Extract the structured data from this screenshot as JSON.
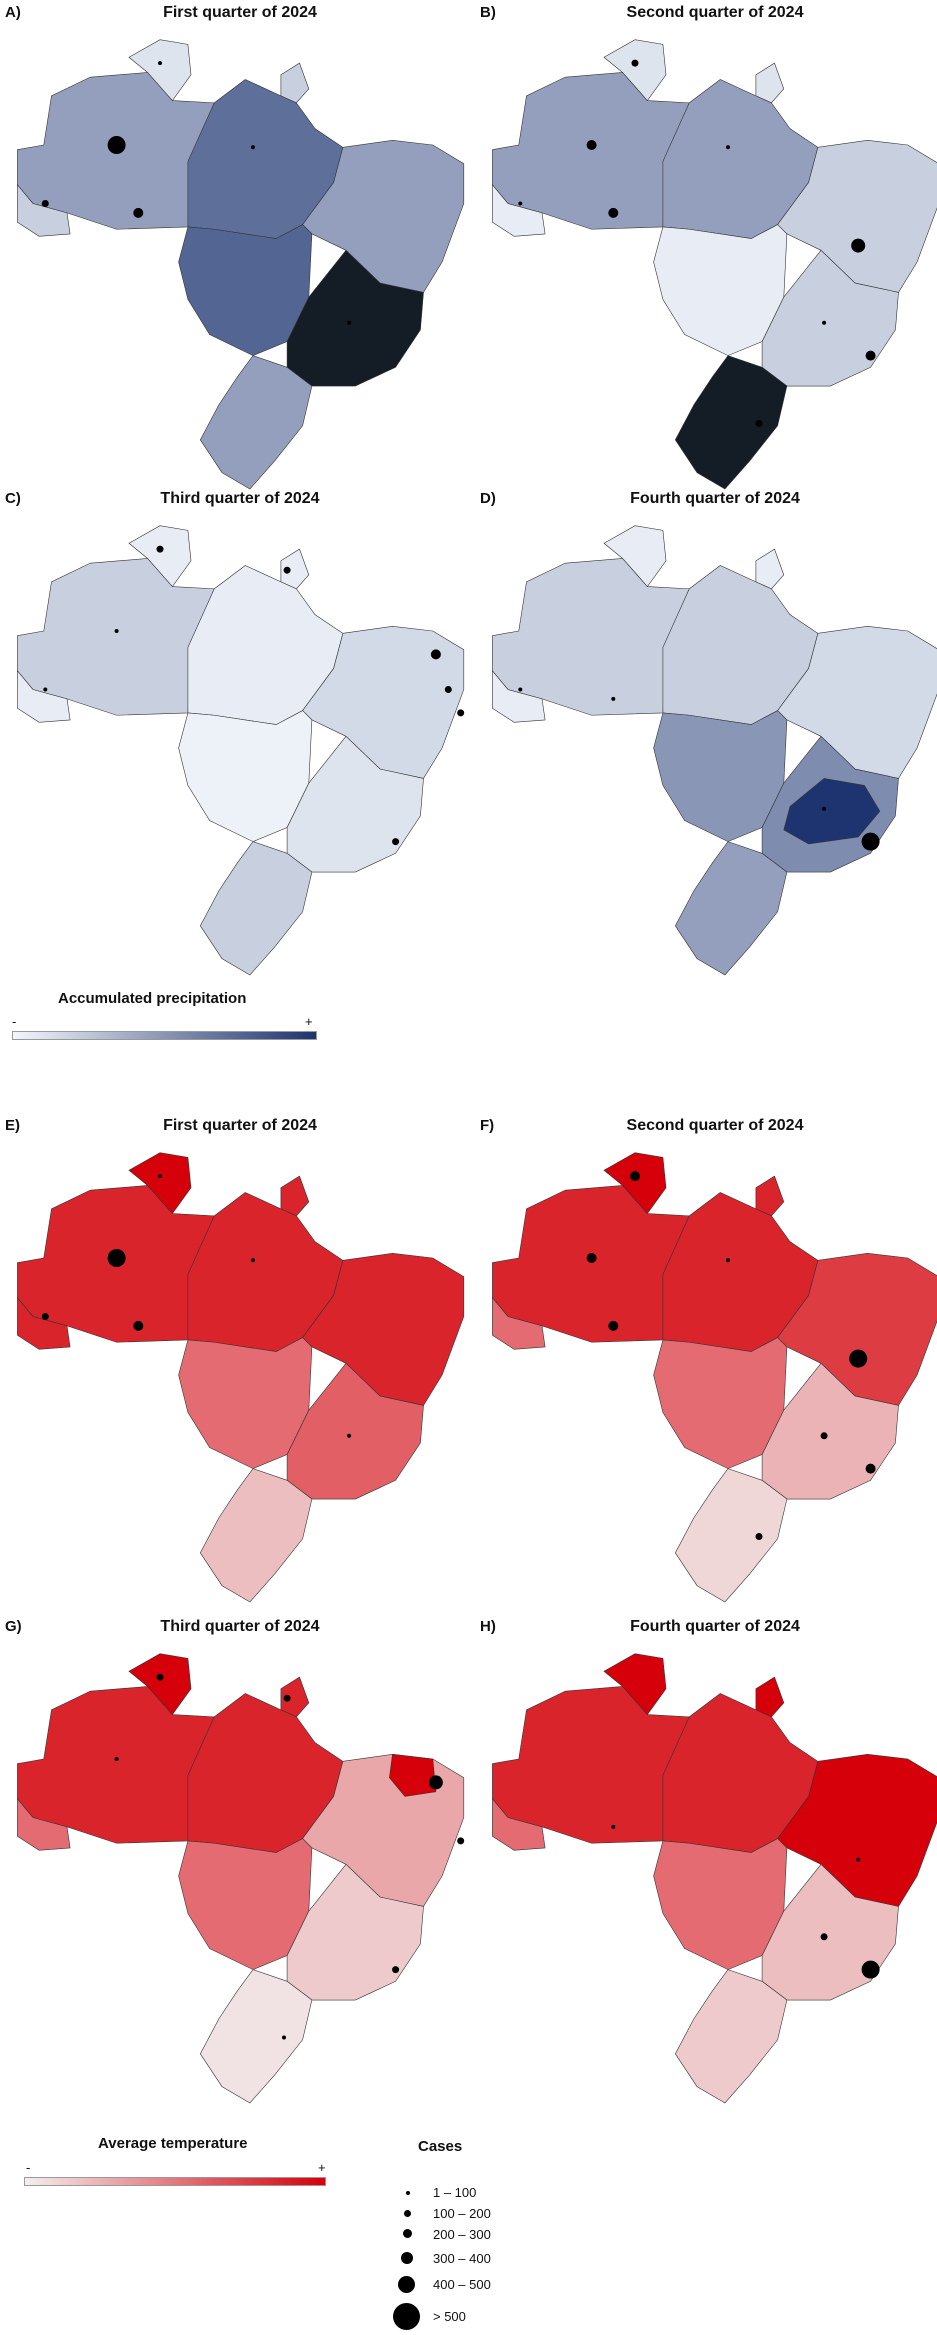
{
  "colors": {
    "precip_low": "#f3f7fc",
    "precip_high": "#1e3470",
    "temp_low": "#f2eeee",
    "temp_high": "#d6000a",
    "border": "#333333",
    "dot": "#000000"
  },
  "panels": [
    {
      "letter": "A)",
      "title": "First quarter of 2024",
      "variable": "precipitation",
      "levels": {
        "northwest": 0.45,
        "north": 0.7,
        "northeast": 0.45,
        "centerwest": 0.75,
        "southeast": 1.0,
        "south": 0.45,
        "roraima": 0.1,
        "amapa": 0.2,
        "acre": 0.2
      },
      "dots": [
        {
          "site": "amazonas",
          "cases": "400 - 500"
        },
        {
          "site": "acre",
          "cases": "100 - 200"
        },
        {
          "site": "rondonia",
          "cases": "200 - 300"
        },
        {
          "site": "roraima",
          "cases": "1 - 100"
        },
        {
          "site": "para",
          "cases": "1 - 100"
        },
        {
          "site": "minas",
          "cases": "1 - 100"
        }
      ]
    },
    {
      "letter": "B)",
      "title": "Second quarter of 2024",
      "variable": "precipitation",
      "levels": {
        "northwest": 0.45,
        "north": 0.45,
        "northeast": 0.2,
        "centerwest": 0.05,
        "southeast": 0.2,
        "south": 1.0,
        "roraima": 0.1,
        "amapa": 0.1,
        "acre": 0.05
      },
      "dots": [
        {
          "site": "amazonas",
          "cases": "200 - 300"
        },
        {
          "site": "roraima",
          "cases": "100 - 200"
        },
        {
          "site": "rondonia",
          "cases": "200 - 300"
        },
        {
          "site": "acre",
          "cases": "1 - 100"
        },
        {
          "site": "bahia",
          "cases": "300 - 400"
        },
        {
          "site": "rio",
          "cases": "200 - 300"
        },
        {
          "site": "para",
          "cases": "1 - 100"
        },
        {
          "site": "minas",
          "cases": "1 - 100"
        },
        {
          "site": "sc",
          "cases": "100 - 200"
        }
      ]
    },
    {
      "letter": "C)",
      "title": "Third quarter of 2024",
      "variable": "precipitation",
      "levels": {
        "northwest": 0.2,
        "north": 0.05,
        "northeast": 0.15,
        "centerwest": 0.03,
        "southeast": 0.1,
        "south": 0.2,
        "roraima": 0.05,
        "amapa": 0.05,
        "acre": 0.05
      },
      "dots": [
        {
          "site": "roraima",
          "cases": "100 - 200"
        },
        {
          "site": "amapa",
          "cases": "100 - 200"
        },
        {
          "site": "rn",
          "cases": "200 - 300"
        },
        {
          "site": "pe",
          "cases": "100 - 200"
        },
        {
          "site": "al",
          "cases": "100 - 200"
        },
        {
          "site": "rio",
          "cases": "100 - 200"
        },
        {
          "site": "amazonas",
          "cases": "1 - 100"
        },
        {
          "site": "acre",
          "cases": "1 - 100"
        }
      ]
    },
    {
      "letter": "D)",
      "title": "Fourth quarter of 2024",
      "variable": "precipitation",
      "levels": {
        "northwest": 0.2,
        "north": 0.2,
        "northeast": 0.15,
        "centerwest": 0.5,
        "southeast": 0.55,
        "south": 0.45,
        "roraima": 0.05,
        "amapa": 0.05,
        "acre": 0.05,
        "minas": 1.0
      },
      "dots": [
        {
          "site": "rio",
          "cases": "400 - 500"
        },
        {
          "site": "minas",
          "cases": "1 - 100"
        },
        {
          "site": "rondonia",
          "cases": "1 - 100"
        },
        {
          "site": "acre",
          "cases": "1 - 100"
        }
      ]
    },
    {
      "letter": "E)",
      "title": "First quarter of 2024",
      "variable": "temperature",
      "levels": {
        "northwest": 0.85,
        "north": 0.85,
        "northeast": 0.85,
        "centerwest": 0.55,
        "southeast": 0.6,
        "south": 0.2,
        "roraima": 1.0,
        "amapa": 0.85,
        "acre": 0.85
      },
      "dots": [
        {
          "site": "amazonas",
          "cases": "400 - 500"
        },
        {
          "site": "rondonia",
          "cases": "200 - 300"
        },
        {
          "site": "acre",
          "cases": "100 - 200"
        },
        {
          "site": "roraima",
          "cases": "1 - 100"
        },
        {
          "site": "para",
          "cases": "1 - 100"
        },
        {
          "site": "minas",
          "cases": "1 - 100"
        }
      ]
    },
    {
      "letter": "F)",
      "title": "Second quarter of 2024",
      "variable": "temperature",
      "levels": {
        "northwest": 0.85,
        "north": 0.85,
        "northeast": 0.75,
        "centerwest": 0.55,
        "southeast": 0.25,
        "south": 0.1,
        "roraima": 1.0,
        "amapa": 0.85,
        "acre": 0.55
      },
      "dots": [
        {
          "site": "roraima",
          "cases": "200 - 300"
        },
        {
          "site": "amazonas",
          "cases": "200 - 300"
        },
        {
          "site": "rondonia",
          "cases": "200 - 300"
        },
        {
          "site": "bahia",
          "cases": "400 - 500"
        },
        {
          "site": "minas",
          "cases": "100 - 200"
        },
        {
          "site": "rio",
          "cases": "200 - 300"
        },
        {
          "site": "sc",
          "cases": "100 - 200"
        },
        {
          "site": "para",
          "cases": "1 - 100"
        }
      ]
    },
    {
      "letter": "G)",
      "title": "Third quarter of 2024",
      "variable": "temperature",
      "levels": {
        "northwest": 0.85,
        "north": 0.85,
        "northeast": 0.3,
        "centerwest": 0.55,
        "southeast": 0.15,
        "south": 0.05,
        "roraima": 1.0,
        "amapa": 0.85,
        "acre": 0.55,
        "ce": 1.0
      },
      "dots": [
        {
          "site": "roraima",
          "cases": "100 - 200"
        },
        {
          "site": "amapa",
          "cases": "100 - 200"
        },
        {
          "site": "rn",
          "cases": "300 - 400"
        },
        {
          "site": "al",
          "cases": "100 - 200"
        },
        {
          "site": "rio",
          "cases": "100 - 200"
        },
        {
          "site": "amazonas",
          "cases": "1 - 100"
        },
        {
          "site": "sc",
          "cases": "1 - 100"
        }
      ]
    },
    {
      "letter": "H)",
      "title": "Fourth quarter of 2024",
      "variable": "temperature",
      "levels": {
        "northwest": 0.85,
        "north": 0.85,
        "northeast": 1.0,
        "centerwest": 0.55,
        "southeast": 0.2,
        "south": 0.15,
        "roraima": 1.0,
        "amapa": 1.0,
        "acre": 0.55
      },
      "dots": [
        {
          "site": "rio",
          "cases": "400 - 500"
        },
        {
          "site": "minas",
          "cases": "100 - 200"
        },
        {
          "site": "rondonia",
          "cases": "1 - 100"
        },
        {
          "site": "bahia",
          "cases": "1 - 100"
        }
      ]
    }
  ],
  "precip_legend": {
    "title": "Accumulated precipitation",
    "min_label": "-",
    "max_label": "+"
  },
  "temp_legend": {
    "title": "Average temperature",
    "min_label": "-",
    "max_label": "+"
  },
  "cases_legend": {
    "title": "Cases",
    "items": [
      {
        "label": "1 – 100"
      },
      {
        "label": "100 – 200"
      },
      {
        "label": "200 – 300"
      },
      {
        "label": "300 – 400"
      },
      {
        "label": "400 – 500"
      },
      {
        "label": "> 500"
      }
    ]
  }
}
